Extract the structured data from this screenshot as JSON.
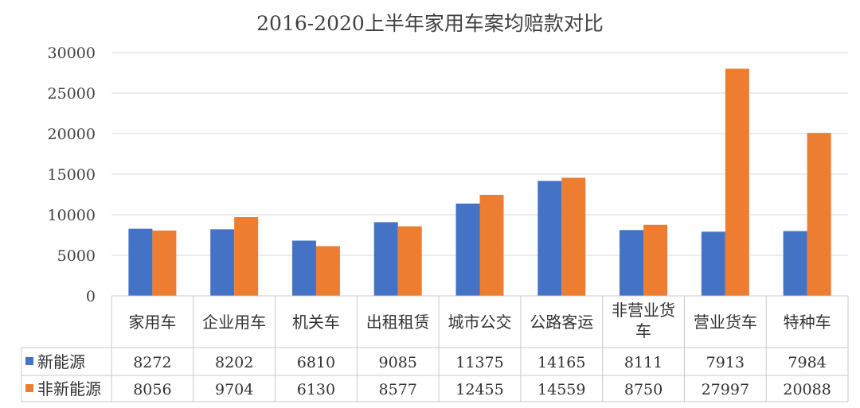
{
  "chart_data": {
    "type": "bar",
    "title": "2016-2020上半年家用车案均赔款对比",
    "categories": [
      "家用车",
      "企业用车",
      "机关车",
      "出租租赁",
      "城市公交",
      "公路客运",
      "非营业货车",
      "营业货车",
      "特种车"
    ],
    "series": [
      {
        "name": "新能源",
        "color": "#4472C4",
        "values": [
          8272,
          8202,
          6810,
          9085,
          11375,
          14165,
          8111,
          7913,
          7984
        ]
      },
      {
        "name": "非新能源",
        "color": "#ED7D31",
        "values": [
          8056,
          9704,
          6130,
          8577,
          12455,
          14559,
          8750,
          27997,
          20088
        ]
      }
    ],
    "ylim": [
      0,
      30000
    ],
    "yticks": [
      0,
      5000,
      10000,
      15000,
      20000,
      25000,
      30000
    ],
    "grid": true,
    "legend": "data-table",
    "value_labels": [
      [
        "8272",
        "8202",
        "6810",
        "9085",
        "11375",
        "14165",
        "8111",
        "7913",
        "7984"
      ],
      [
        "8056",
        "9704",
        "6130",
        "8577",
        "12455",
        "14559",
        "8750",
        "27997",
        "20088"
      ]
    ]
  }
}
